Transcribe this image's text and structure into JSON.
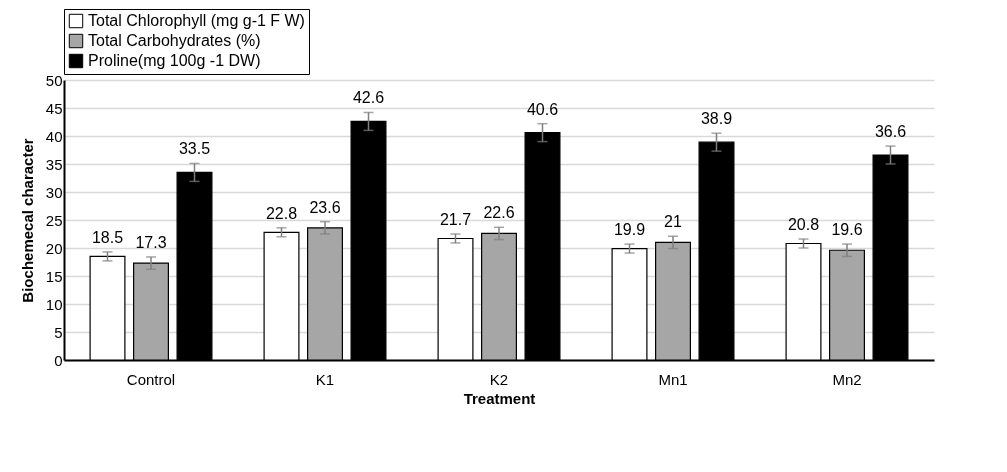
{
  "chart_data": {
    "type": "bar",
    "xlabel": "Treatment",
    "ylabel": "Biochemecal character",
    "categories": [
      "Control",
      "K1",
      "K2",
      "Mn1",
      "Mn2"
    ],
    "series": [
      {
        "name": "Total Chlorophyll (mg g-1 F W)",
        "color": "#ffffff",
        "values": [
          18.5,
          22.8,
          21.7,
          19.9,
          20.8
        ],
        "errors": [
          0.8,
          0.8,
          0.8,
          0.8,
          0.8
        ]
      },
      {
        "name": "Total Carbohydrates (%)",
        "color": "#a6a6a6",
        "values": [
          17.3,
          23.6,
          22.6,
          21,
          19.6
        ],
        "errors": [
          1.1,
          1.1,
          1.1,
          1.1,
          1.1
        ]
      },
      {
        "name": "Proline(mg 100g -1 DW)",
        "color": "#000000",
        "values": [
          33.5,
          42.6,
          40.6,
          38.9,
          36.6
        ],
        "errors": [
          1.6,
          1.6,
          1.6,
          1.6,
          1.6
        ]
      }
    ],
    "ylim": [
      0,
      50
    ],
    "yticks": [
      0,
      5,
      10,
      15,
      20,
      25,
      30,
      35,
      40,
      45,
      50
    ],
    "grid": "y",
    "legend": "top left",
    "data_labels": true
  }
}
